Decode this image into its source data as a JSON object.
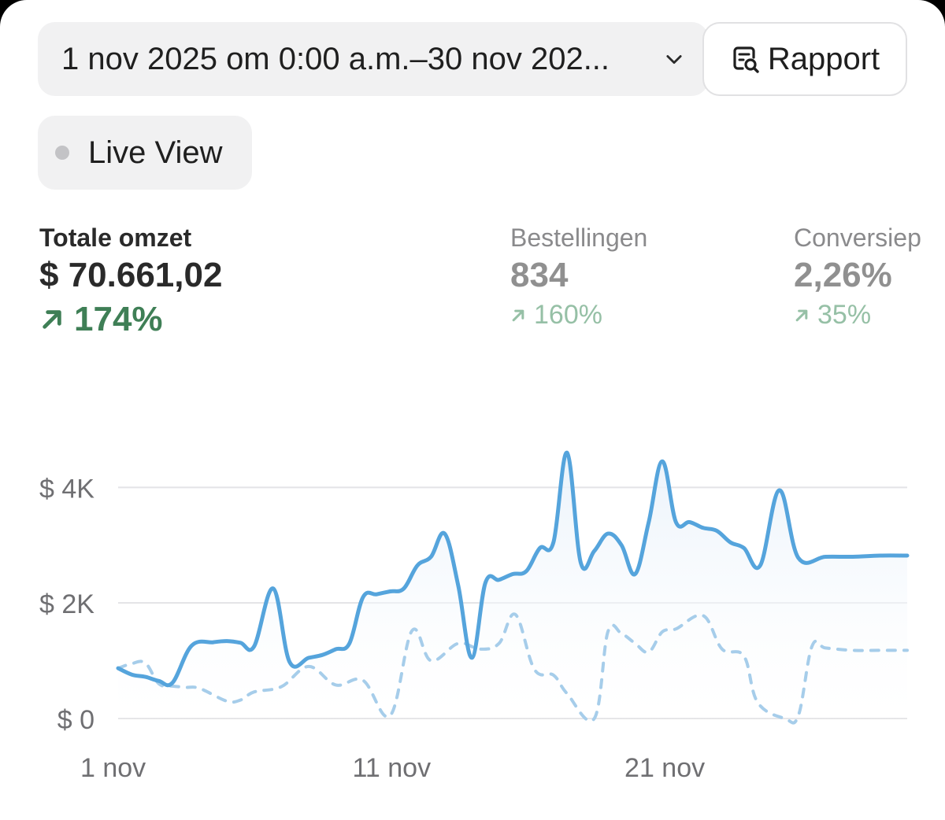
{
  "header": {
    "date_range": "1 nov 2025 om 0:00 a.m.–30 nov 202...",
    "date_range_icon": "chevron-down-icon",
    "report_label": "Rapport",
    "report_icon": "report-search-icon",
    "live_view_label": "Live View",
    "live_view_icon": "status-dot-icon"
  },
  "metrics": [
    {
      "label": "Totale omzet",
      "value": "$ 70.661,02",
      "delta": "174%"
    },
    {
      "label": "Bestellingen",
      "value": "834",
      "delta": "160%"
    },
    {
      "label": "Conversiep",
      "value": "2,26%",
      "delta": "35%"
    }
  ],
  "colors": {
    "current_series": "#55a4dc",
    "previous_series": "#a6cdea",
    "grid": "#e3e3e6",
    "axis_text": "#6f6f72",
    "positive": "#3f7f56"
  },
  "chart_data": {
    "type": "line",
    "title": "",
    "xlabel": "",
    "ylabel": "",
    "ylim": [
      0,
      4400
    ],
    "y_ticks": [
      {
        "value": 0,
        "label": "$ 0"
      },
      {
        "value": 2000,
        "label": "$ 2K"
      },
      {
        "value": 4000,
        "label": "$ 4K"
      }
    ],
    "x_ticks": [
      {
        "day": 1,
        "label": "1 nov"
      },
      {
        "day": 11,
        "label": "11 nov"
      },
      {
        "day": 21,
        "label": "21 nov"
      }
    ],
    "x_range": [
      1,
      30
    ],
    "series": [
      {
        "name": "current",
        "style": "solid",
        "points": [
          [
            1,
            870
          ],
          [
            1.5,
            760
          ],
          [
            2,
            720
          ],
          [
            2.5,
            650
          ],
          [
            3,
            620
          ],
          [
            3.7,
            1260
          ],
          [
            4.5,
            1320
          ],
          [
            5,
            1340
          ],
          [
            5.5,
            1310
          ],
          [
            6,
            1250
          ],
          [
            6.7,
            2250
          ],
          [
            7.3,
            980
          ],
          [
            8,
            1050
          ],
          [
            8.5,
            1100
          ],
          [
            9,
            1200
          ],
          [
            9.5,
            1300
          ],
          [
            10,
            2100
          ],
          [
            10.5,
            2150
          ],
          [
            11,
            2200
          ],
          [
            11.5,
            2250
          ],
          [
            12,
            2650
          ],
          [
            12.5,
            2800
          ],
          [
            13,
            3200
          ],
          [
            13.5,
            2300
          ],
          [
            14,
            1050
          ],
          [
            14.5,
            2350
          ],
          [
            15,
            2400
          ],
          [
            15.5,
            2500
          ],
          [
            16,
            2550
          ],
          [
            16.5,
            2950
          ],
          [
            17,
            3050
          ],
          [
            17.5,
            4600
          ],
          [
            18,
            2700
          ],
          [
            18.5,
            2900
          ],
          [
            19,
            3200
          ],
          [
            19.5,
            3000
          ],
          [
            20,
            2500
          ],
          [
            20.5,
            3400
          ],
          [
            21,
            4450
          ],
          [
            21.5,
            3400
          ],
          [
            22,
            3400
          ],
          [
            22.5,
            3300
          ],
          [
            23,
            3250
          ],
          [
            23.5,
            3050
          ],
          [
            24,
            2950
          ],
          [
            24.6,
            2650
          ],
          [
            25.3,
            3950
          ],
          [
            26,
            2780
          ],
          [
            27,
            2800
          ],
          [
            28,
            2800
          ],
          [
            29,
            2820
          ],
          [
            30,
            2820
          ]
        ]
      },
      {
        "name": "previous",
        "style": "dashed",
        "points": [
          [
            1,
            870
          ],
          [
            1.5,
            950
          ],
          [
            2,
            960
          ],
          [
            2.5,
            600
          ],
          [
            3,
            560
          ],
          [
            3.5,
            540
          ],
          [
            4,
            520
          ],
          [
            5,
            300
          ],
          [
            5.5,
            320
          ],
          [
            6,
            460
          ],
          [
            7,
            550
          ],
          [
            8,
            900
          ],
          [
            9,
            580
          ],
          [
            10,
            660
          ],
          [
            11,
            50
          ],
          [
            11.8,
            1520
          ],
          [
            12.5,
            1000
          ],
          [
            13.5,
            1300
          ],
          [
            14.3,
            1200
          ],
          [
            15,
            1300
          ],
          [
            15.6,
            1800
          ],
          [
            16.3,
            850
          ],
          [
            17,
            750
          ],
          [
            17.5,
            430
          ],
          [
            18.5,
            0
          ],
          [
            19,
            1500
          ],
          [
            19.5,
            1470
          ],
          [
            20,
            1300
          ],
          [
            20.5,
            1150
          ],
          [
            21,
            1500
          ],
          [
            21.5,
            1550
          ],
          [
            22.5,
            1780
          ],
          [
            23.2,
            1200
          ],
          [
            24,
            1080
          ],
          [
            24.5,
            280
          ],
          [
            25.5,
            0
          ],
          [
            26,
            50
          ],
          [
            26.5,
            1250
          ],
          [
            27,
            1220
          ],
          [
            28,
            1180
          ],
          [
            29,
            1180
          ],
          [
            30,
            1180
          ]
        ]
      }
    ]
  }
}
